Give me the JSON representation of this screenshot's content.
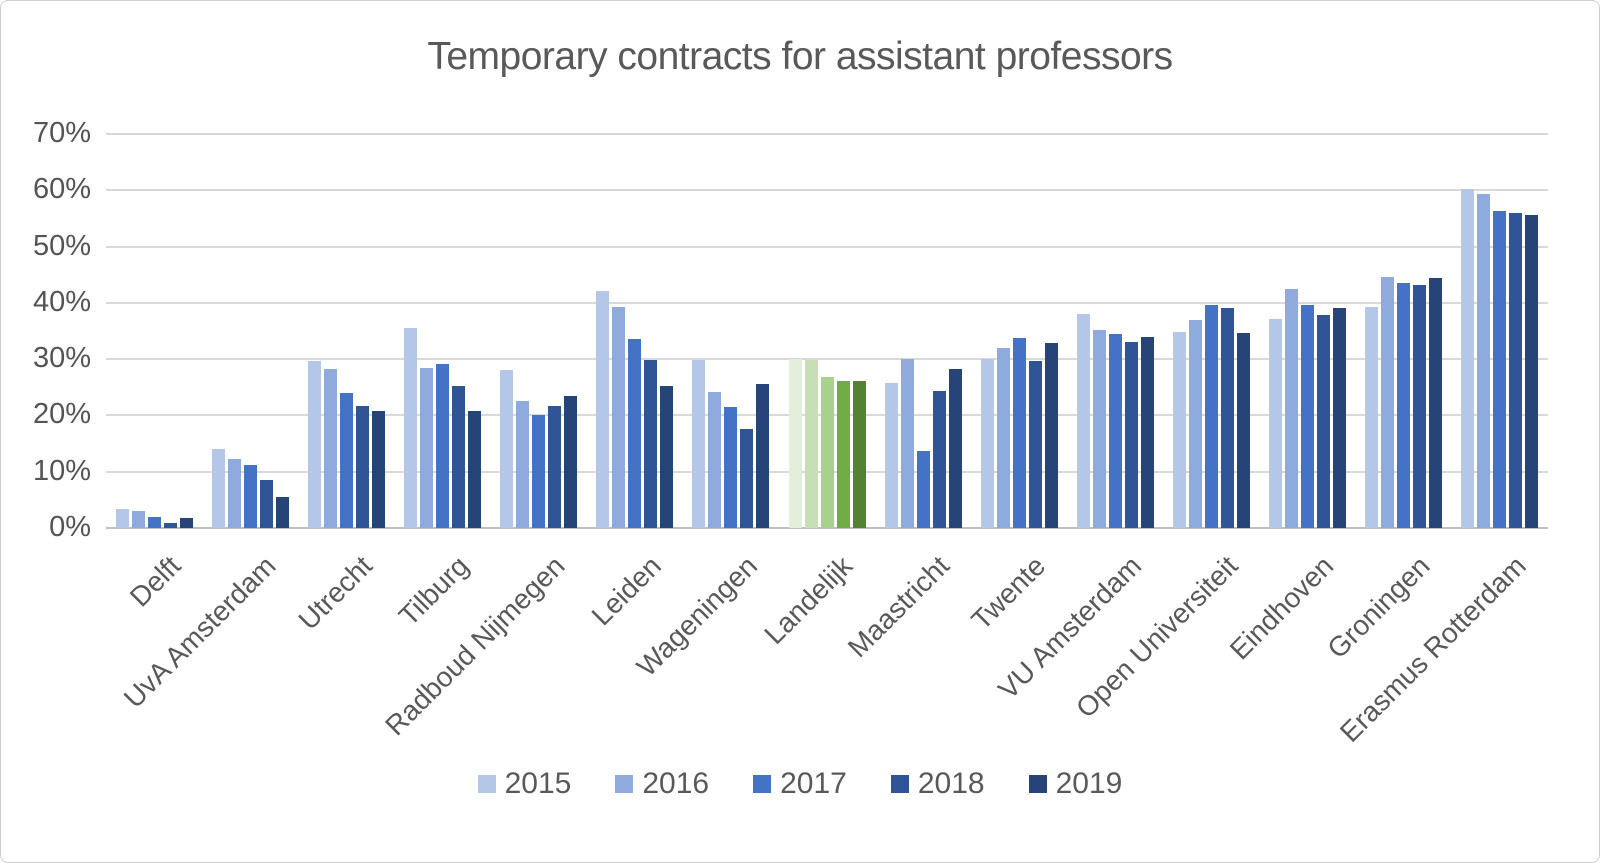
{
  "title": "Temporary contracts for assistant professors",
  "chart_data": {
    "type": "bar",
    "title": "Temporary contracts for assistant professors",
    "xlabel": "",
    "ylabel": "",
    "ylim": [
      0,
      70
    ],
    "yticks": [
      "0%",
      "10%",
      "20%",
      "30%",
      "40%",
      "50%",
      "60%",
      "70%"
    ],
    "grid": true,
    "legend_position": "bottom",
    "categories": [
      "Delft",
      "UvA Amsterdam",
      "Utrecht",
      "Tilburg",
      "Radboud Nijmegen",
      "Leiden",
      "Wageningen",
      "Landelijk",
      "Maastricht",
      "Twente",
      "VU Amsterdam",
      "Open Universiteit",
      "Eindhoven",
      "Groningen",
      "Erasmus Rotterdam"
    ],
    "series": [
      {
        "name": "2015",
        "color": "#B4C7E7",
        "values": [
          3.4,
          14.1,
          29.7,
          35.6,
          28.1,
          42.1,
          29.8,
          30.1,
          25.8,
          30.0,
          38.1,
          34.8,
          37.2,
          39.2,
          60.2
        ]
      },
      {
        "name": "2016",
        "color": "#8FAADC",
        "values": [
          3.0,
          12.3,
          28.3,
          28.4,
          22.6,
          39.2,
          24.2,
          29.9,
          30.1,
          31.9,
          35.2,
          36.9,
          42.5,
          44.6,
          59.4
        ]
      },
      {
        "name": "2017",
        "color": "#4472C4",
        "values": [
          2.0,
          11.2,
          24.0,
          29.2,
          20.1,
          33.6,
          21.5,
          26.9,
          13.7,
          33.7,
          34.5,
          39.7,
          39.7,
          43.6,
          56.4
        ]
      },
      {
        "name": "2018",
        "color": "#2F5597",
        "values": [
          0.9,
          8.6,
          21.7,
          25.2,
          21.7,
          29.9,
          17.6,
          26.1,
          24.3,
          29.6,
          33.1,
          39.1,
          37.9,
          43.2,
          55.9
        ]
      },
      {
        "name": "2019",
        "color": "#264478",
        "values": [
          1.7,
          5.5,
          20.8,
          20.8,
          23.4,
          25.3,
          25.5,
          26.2,
          28.2,
          32.8,
          33.9,
          34.7,
          39.0,
          44.5,
          55.6
        ]
      }
    ],
    "highlight_category": "Landelijk",
    "highlight_colors": [
      "#E2EFDA",
      "#C6E0B4",
      "#A9D18E",
      "#70AD47",
      "#548235"
    ]
  },
  "legend": {
    "items": [
      "2015",
      "2016",
      "2017",
      "2018",
      "2019"
    ]
  },
  "colors": {
    "title_text": "#595959",
    "axis_text": "#595959",
    "gridline": "#D9D9D9"
  }
}
